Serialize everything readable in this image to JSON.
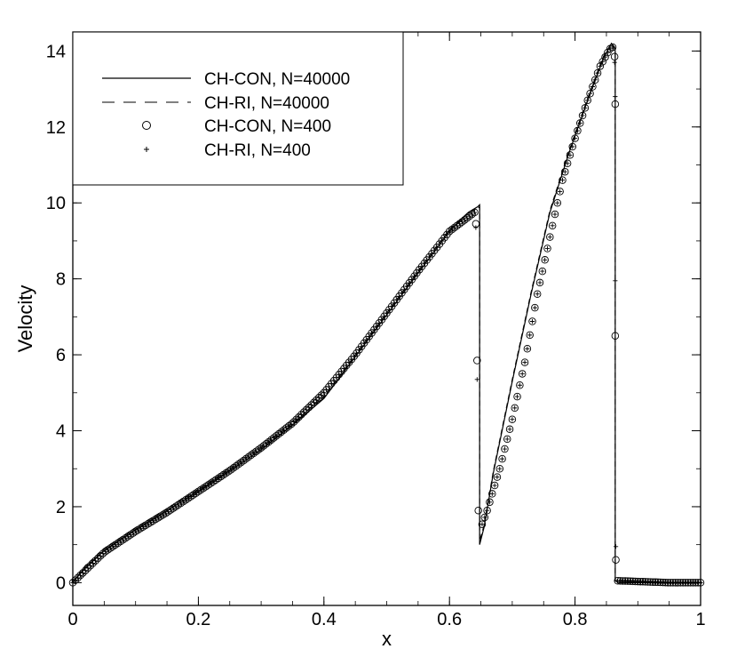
{
  "chart_data": {
    "type": "line",
    "xlabel": "x",
    "ylabel": "Velocity",
    "xlim": [
      0,
      1
    ],
    "ylim": [
      -0.6,
      14.5
    ],
    "x_ticks": [
      "0",
      "0.2",
      "0.4",
      "0.6",
      "0.8",
      "1"
    ],
    "x_tick_values": [
      0,
      0.2,
      0.4,
      0.6,
      0.8,
      1
    ],
    "y_ticks": [
      "0",
      "2",
      "4",
      "6",
      "8",
      "10",
      "12",
      "14"
    ],
    "y_tick_values": [
      0,
      2,
      4,
      6,
      8,
      10,
      12,
      14
    ],
    "grid": false,
    "legend_position": "top-left",
    "legend": [
      {
        "label": "CH-CON, N=40000",
        "style": "solid"
      },
      {
        "label": "CH-RI, N=40000",
        "style": "dashed"
      },
      {
        "label": "CH-CON, N=400",
        "style": "circle"
      },
      {
        "label": "CH-RI, N=400",
        "style": "plus"
      }
    ],
    "series": [
      {
        "name": "CH-CON, N=40000",
        "x": [
          0,
          0.02,
          0.05,
          0.1,
          0.15,
          0.2,
          0.25,
          0.3,
          0.35,
          0.4,
          0.45,
          0.5,
          0.55,
          0.6,
          0.63,
          0.645,
          0.648,
          0.648,
          0.655,
          0.67,
          0.7,
          0.73,
          0.76,
          0.79,
          0.82,
          0.845,
          0.858,
          0.863,
          0.864,
          0.864,
          0.87,
          0.9,
          0.95,
          1.0
        ],
        "y": [
          0,
          0.4,
          0.85,
          1.4,
          1.9,
          2.4,
          2.95,
          3.5,
          4.15,
          4.85,
          5.95,
          7.05,
          8.15,
          9.25,
          9.75,
          9.9,
          9.95,
          1.0,
          1.45,
          2.9,
          5.3,
          7.6,
          9.75,
          11.3,
          12.7,
          13.8,
          14.2,
          14.1,
          14.0,
          0.05,
          0.0,
          0.0,
          0.0,
          0.0
        ]
      },
      {
        "name": "CH-RI, N=40000",
        "x": [
          0,
          0.02,
          0.05,
          0.1,
          0.15,
          0.2,
          0.25,
          0.3,
          0.35,
          0.4,
          0.45,
          0.5,
          0.55,
          0.6,
          0.63,
          0.645,
          0.648,
          0.648,
          0.655,
          0.67,
          0.7,
          0.73,
          0.76,
          0.79,
          0.82,
          0.845,
          0.858,
          0.863,
          0.864,
          0.864,
          0.87,
          0.9,
          0.95,
          1.0
        ],
        "y": [
          0,
          0.45,
          0.9,
          1.45,
          1.95,
          2.45,
          3.0,
          3.55,
          4.2,
          4.9,
          6.0,
          7.1,
          8.2,
          9.3,
          9.75,
          9.85,
          9.9,
          1.1,
          1.5,
          2.95,
          5.35,
          7.65,
          9.8,
          11.35,
          12.75,
          13.85,
          14.2,
          14.1,
          14.0,
          0.05,
          0.0,
          0.0,
          0.0,
          0.0
        ]
      },
      {
        "name": "CH-CON, N=400",
        "curve_x": [
          0.0,
          0.05,
          0.1,
          0.15,
          0.2,
          0.25,
          0.3,
          0.35,
          0.4,
          0.45,
          0.5,
          0.55,
          0.6,
          0.64
        ],
        "curve_y": [
          0.0,
          0.8,
          1.35,
          1.85,
          2.4,
          2.95,
          3.55,
          4.2,
          5.0,
          6.0,
          7.1,
          8.2,
          9.25,
          9.75
        ],
        "curve2_x": [
          0.649,
          0.66,
          0.68,
          0.7,
          0.72,
          0.74,
          0.76,
          0.78,
          0.8,
          0.82,
          0.84,
          0.855,
          0.86
        ],
        "curve2_y": [
          1.4,
          1.9,
          3.0,
          4.3,
          5.8,
          7.6,
          9.1,
          10.6,
          11.7,
          12.7,
          13.6,
          14.05,
          14.1
        ],
        "tail_x": [
          0.868,
          0.9,
          0.95,
          1.0
        ],
        "tail_y": [
          0.05,
          0.03,
          0.0,
          0.0
        ],
        "extra_points": [
          [
            0.642,
            9.45
          ],
          [
            0.644,
            5.85
          ],
          [
            0.646,
            1.9
          ],
          [
            0.863,
            13.85
          ],
          [
            0.864,
            12.6
          ],
          [
            0.864,
            6.5
          ],
          [
            0.865,
            0.6
          ]
        ],
        "step": 0.004
      },
      {
        "name": "CH-RI, N=400",
        "extra_points": [
          [
            0.642,
            9.35
          ],
          [
            0.644,
            5.35
          ],
          [
            0.863,
            13.7
          ],
          [
            0.864,
            12.8
          ],
          [
            0.864,
            7.95
          ],
          [
            0.865,
            0.95
          ]
        ]
      }
    ]
  }
}
